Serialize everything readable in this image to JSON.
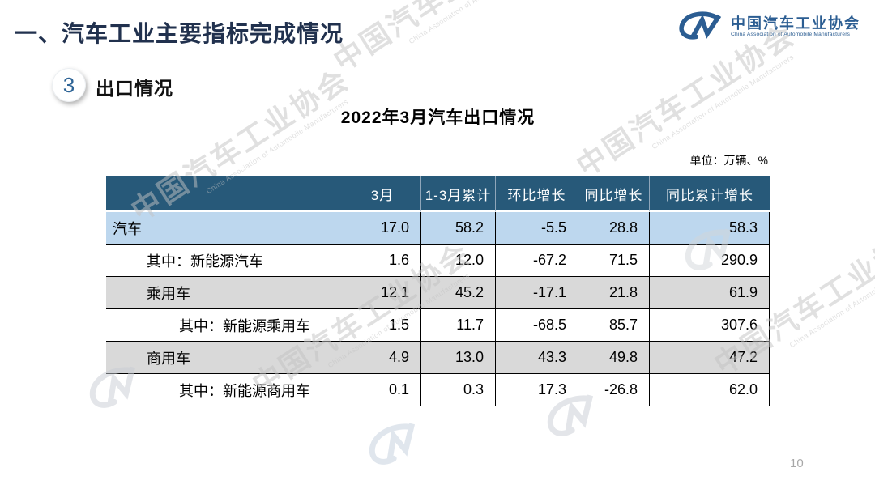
{
  "header": {
    "section_title": "一、汽车工业主要指标完成情况",
    "badge_number": "3",
    "subsection_title": "出口情况"
  },
  "logo": {
    "name_cn": "中国汽车工业协会",
    "name_en": "China Association of Automobile Manufacturers"
  },
  "table_title": "2022年3月汽车出口情况",
  "unit_label": "单位：万辆、%",
  "page_number": "10",
  "watermark": {
    "text_cn": "中国汽车工业协会",
    "text_en": "China Association of Automobile Manufacturers"
  },
  "colors": {
    "header_bg": "#275979",
    "row_blue": "#BDD7EE",
    "row_gray": "#D9D9D9",
    "logo_blue": "#2B5D92",
    "title_navy": "#21314E"
  },
  "chart_data": {
    "type": "table",
    "title": "2022年3月汽车出口情况",
    "unit": "万辆、%",
    "columns": [
      "",
      "3月",
      "1-3月累计",
      "环比增长",
      "同比增长",
      "同比累计增长"
    ],
    "rows": [
      {
        "label": "汽车",
        "indent": 0,
        "bg": "blue",
        "values": [
          "17.0",
          "58.2",
          "-5.5",
          "28.8",
          "58.3"
        ]
      },
      {
        "label": "其中：新能源汽车",
        "indent": 1,
        "bg": "white",
        "values": [
          "1.6",
          "12.0",
          "-67.2",
          "71.5",
          "290.9"
        ]
      },
      {
        "label": "乘用车",
        "indent": 1,
        "bg": "gray",
        "values": [
          "12.1",
          "45.2",
          "-17.1",
          "21.8",
          "61.9"
        ]
      },
      {
        "label": "其中：新能源乘用车",
        "indent": 2,
        "bg": "white",
        "values": [
          "1.5",
          "11.7",
          "-68.5",
          "85.7",
          "307.6"
        ]
      },
      {
        "label": "商用车",
        "indent": 1,
        "bg": "gray",
        "values": [
          "4.9",
          "13.0",
          "43.3",
          "49.8",
          "47.2"
        ]
      },
      {
        "label": "其中：新能源商用车",
        "indent": 2,
        "bg": "white",
        "values": [
          "0.1",
          "0.3",
          "17.3",
          "-26.8",
          "62.0"
        ]
      }
    ]
  }
}
